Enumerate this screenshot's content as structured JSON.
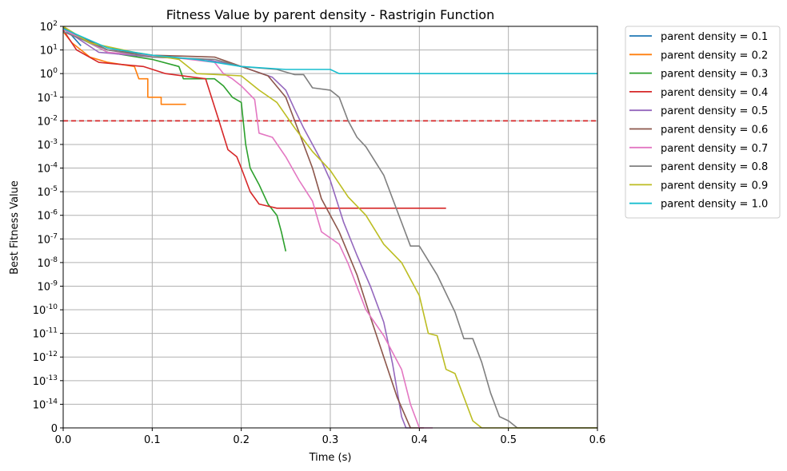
{
  "chart_data": {
    "type": "line",
    "title": "Fitness Value by parent density - Rastrigin Function",
    "xlabel": "Time (s)",
    "ylabel": "Best Fitness Value",
    "xlim": [
      0,
      0.6
    ],
    "ylim_log10": [
      -15,
      2
    ],
    "y_scale": "log with zero floor",
    "x_ticks": [
      "0.0",
      "0.1",
      "0.2",
      "0.3",
      "0.4",
      "0.5",
      "0.6"
    ],
    "y_ticks": [
      "0",
      "10^-14",
      "10^-13",
      "10^-12",
      "10^-11",
      "10^-10",
      "10^-9",
      "10^-8",
      "10^-7",
      "10^-6",
      "10^-5",
      "10^-4",
      "10^-3",
      "10^-2",
      "10^-1",
      "10^0",
      "10^1",
      "10^2"
    ],
    "grid": true,
    "legend_position": "outside-right-top",
    "threshold": {
      "y": 0.01,
      "color": "#d62728",
      "style": "dashed"
    },
    "series": [
      {
        "name": "parent density = 0.1",
        "color": "#1f77b4",
        "points": [
          [
            0.0,
            80
          ],
          [
            0.01,
            40
          ],
          [
            0.02,
            15
          ]
        ]
      },
      {
        "name": "parent density = 0.2",
        "color": "#ff7f0e",
        "points": [
          [
            0.0,
            60
          ],
          [
            0.01,
            20
          ],
          [
            0.02,
            10
          ],
          [
            0.03,
            5
          ],
          [
            0.05,
            3
          ],
          [
            0.08,
            2
          ],
          [
            0.085,
            0.6
          ],
          [
            0.095,
            0.6
          ],
          [
            0.095,
            0.1
          ],
          [
            0.11,
            0.1
          ],
          [
            0.11,
            0.05
          ],
          [
            0.138,
            0.05
          ]
        ]
      },
      {
        "name": "parent density = 0.3",
        "color": "#2ca02c",
        "points": [
          [
            0.0,
            90
          ],
          [
            0.02,
            30
          ],
          [
            0.05,
            8
          ],
          [
            0.1,
            4
          ],
          [
            0.13,
            2
          ],
          [
            0.135,
            0.6
          ],
          [
            0.17,
            0.6
          ],
          [
            0.18,
            0.3
          ],
          [
            0.19,
            0.1
          ],
          [
            0.2,
            0.06
          ],
          [
            0.205,
            0.001
          ],
          [
            0.21,
            0.0001
          ],
          [
            0.22,
            2e-05
          ],
          [
            0.23,
            3e-06
          ],
          [
            0.24,
            1e-06
          ],
          [
            0.245,
            2e-07
          ],
          [
            0.25,
            3e-08
          ]
        ]
      },
      {
        "name": "parent density = 0.4",
        "color": "#d62728",
        "points": [
          [
            0.0,
            70
          ],
          [
            0.015,
            10
          ],
          [
            0.04,
            3
          ],
          [
            0.09,
            2
          ],
          [
            0.115,
            1
          ],
          [
            0.16,
            0.6
          ],
          [
            0.175,
            0.01
          ],
          [
            0.185,
            0.0006
          ],
          [
            0.195,
            0.0003
          ],
          [
            0.2,
            0.0001
          ],
          [
            0.21,
            1e-05
          ],
          [
            0.22,
            3e-06
          ],
          [
            0.24,
            2e-06
          ],
          [
            0.43,
            2e-06
          ]
        ]
      },
      {
        "name": "parent density = 0.5",
        "color": "#9467bd",
        "points": [
          [
            0.0,
            80
          ],
          [
            0.04,
            8
          ],
          [
            0.1,
            5
          ],
          [
            0.16,
            4
          ],
          [
            0.2,
            2
          ],
          [
            0.235,
            0.7
          ],
          [
            0.25,
            0.2
          ],
          [
            0.26,
            0.03
          ],
          [
            0.27,
            0.005
          ],
          [
            0.28,
            0.001
          ],
          [
            0.29,
            0.0002
          ],
          [
            0.3,
            3e-05
          ],
          [
            0.315,
            5e-07
          ],
          [
            0.33,
            2e-08
          ],
          [
            0.345,
            1e-09
          ],
          [
            0.36,
            3e-11
          ],
          [
            0.37,
            5e-13
          ],
          [
            0.38,
            3e-15
          ],
          [
            0.385,
            5e-17
          ],
          [
            0.39,
            0
          ]
        ]
      },
      {
        "name": "parent density = 0.6",
        "color": "#8c564b",
        "points": [
          [
            0.0,
            85
          ],
          [
            0.05,
            10
          ],
          [
            0.1,
            6
          ],
          [
            0.17,
            5
          ],
          [
            0.2,
            2
          ],
          [
            0.23,
            0.8
          ],
          [
            0.25,
            0.1
          ],
          [
            0.26,
            0.01
          ],
          [
            0.27,
            0.001
          ],
          [
            0.28,
            0.0001
          ],
          [
            0.29,
            5e-06
          ],
          [
            0.31,
            2e-07
          ],
          [
            0.33,
            3e-09
          ],
          [
            0.345,
            5e-11
          ],
          [
            0.36,
            1e-12
          ],
          [
            0.375,
            2e-14
          ],
          [
            0.39,
            8e-16
          ],
          [
            0.4,
            2e-17
          ],
          [
            0.405,
            0
          ]
        ]
      },
      {
        "name": "parent density = 0.7",
        "color": "#e377c2",
        "points": [
          [
            0.0,
            75
          ],
          [
            0.05,
            8
          ],
          [
            0.12,
            5
          ],
          [
            0.17,
            3
          ],
          [
            0.18,
            1
          ],
          [
            0.19,
            0.6
          ],
          [
            0.2,
            0.3
          ],
          [
            0.215,
            0.08
          ],
          [
            0.22,
            0.003
          ],
          [
            0.235,
            0.002
          ],
          [
            0.25,
            0.0003
          ],
          [
            0.265,
            3e-05
          ],
          [
            0.28,
            4e-06
          ],
          [
            0.29,
            2e-07
          ],
          [
            0.31,
            6e-08
          ],
          [
            0.32,
            9e-09
          ],
          [
            0.34,
            1e-10
          ],
          [
            0.36,
            8e-12
          ],
          [
            0.38,
            3e-13
          ],
          [
            0.39,
            1e-14
          ],
          [
            0.4,
            1e-15
          ],
          [
            0.41,
            1e-15
          ],
          [
            0.415,
            0
          ]
        ]
      },
      {
        "name": "parent density = 0.8",
        "color": "#7f7f7f",
        "points": [
          [
            0.0,
            60
          ],
          [
            0.05,
            10
          ],
          [
            0.1,
            5
          ],
          [
            0.17,
            4
          ],
          [
            0.2,
            2
          ],
          [
            0.24,
            1.5
          ],
          [
            0.26,
            0.9
          ],
          [
            0.27,
            0.9
          ],
          [
            0.28,
            0.25
          ],
          [
            0.3,
            0.2
          ],
          [
            0.31,
            0.1
          ],
          [
            0.32,
            0.01
          ],
          [
            0.33,
            0.002
          ],
          [
            0.34,
            0.0008
          ],
          [
            0.36,
            5e-05
          ],
          [
            0.37,
            5e-06
          ],
          [
            0.38,
            5e-07
          ],
          [
            0.39,
            5e-08
          ],
          [
            0.4,
            5e-08
          ],
          [
            0.42,
            3e-09
          ],
          [
            0.44,
            8e-11
          ],
          [
            0.45,
            6e-12
          ],
          [
            0.46,
            6e-12
          ],
          [
            0.47,
            6e-13
          ],
          [
            0.48,
            3e-14
          ],
          [
            0.49,
            3e-15
          ],
          [
            0.5,
            2e-15
          ],
          [
            0.51,
            3e-16
          ],
          [
            0.52,
            2e-17
          ],
          [
            0.53,
            0
          ],
          [
            0.6,
            0
          ]
        ]
      },
      {
        "name": "parent density = 0.9",
        "color": "#bcbd22",
        "points": [
          [
            0.0,
            100
          ],
          [
            0.03,
            20
          ],
          [
            0.08,
            8
          ],
          [
            0.13,
            4
          ],
          [
            0.15,
            1
          ],
          [
            0.2,
            0.8
          ],
          [
            0.22,
            0.2
          ],
          [
            0.24,
            0.06
          ],
          [
            0.26,
            0.005
          ],
          [
            0.28,
            0.0005
          ],
          [
            0.3,
            8e-05
          ],
          [
            0.32,
            6e-06
          ],
          [
            0.34,
            1e-06
          ],
          [
            0.36,
            6e-08
          ],
          [
            0.38,
            1e-08
          ],
          [
            0.4,
            4e-10
          ],
          [
            0.41,
            1e-11
          ],
          [
            0.42,
            8e-12
          ],
          [
            0.43,
            3e-13
          ],
          [
            0.44,
            2e-13
          ],
          [
            0.46,
            2e-15
          ],
          [
            0.47,
            6e-17
          ],
          [
            0.475,
            8e-18
          ],
          [
            0.485,
            0
          ],
          [
            0.6,
            0
          ]
        ]
      },
      {
        "name": "parent density = 1.0",
        "color": "#17becf",
        "points": [
          [
            0.0,
            80
          ],
          [
            0.05,
            12
          ],
          [
            0.1,
            6
          ],
          [
            0.15,
            4
          ],
          [
            0.2,
            2
          ],
          [
            0.25,
            1.5
          ],
          [
            0.3,
            1.5
          ],
          [
            0.31,
            1.0
          ],
          [
            0.6,
            1.0
          ]
        ]
      }
    ]
  }
}
